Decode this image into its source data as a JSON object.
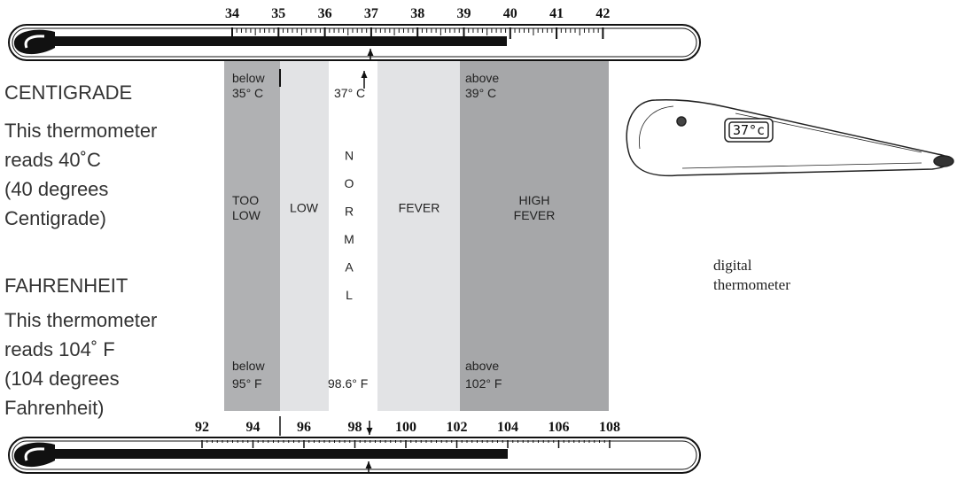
{
  "celsius_scale": [
    34,
    35,
    36,
    37,
    38,
    39,
    40,
    41,
    42
  ],
  "fahrenheit_scale": [
    92,
    94,
    96,
    98,
    100,
    102,
    104,
    106,
    108
  ],
  "centigrade": {
    "heading": "CENTIGRADE",
    "lines": [
      "This thermometer",
      "reads 40˚C",
      "(40 degrees",
      "Centigrade)"
    ]
  },
  "fahrenheit": {
    "heading": "FAHRENHEIT",
    "lines": [
      "This thermometer",
      "reads 104˚ F",
      "(104 degrees",
      "Fahrenheit)"
    ]
  },
  "bands": [
    {
      "label": [
        "TOO",
        "LOW"
      ],
      "top": [
        "below",
        "35° C"
      ],
      "bottom": [
        "below",
        "95° F"
      ]
    },
    {
      "label": [
        "LOW"
      ]
    },
    {
      "label": [
        "N",
        "O",
        "R",
        "M",
        "A",
        "L"
      ],
      "top": [
        "37° C"
      ],
      "bottom": [
        "98.6° F"
      ]
    },
    {
      "label": [
        "FEVER"
      ]
    },
    {
      "label": [
        "HIGH",
        "FEVER"
      ],
      "top": [
        "above",
        "39° C"
      ],
      "bottom": [
        "above",
        "102° F"
      ]
    }
  ],
  "digital": {
    "display": "37°c",
    "caption": [
      "digital",
      "thermometer"
    ]
  }
}
